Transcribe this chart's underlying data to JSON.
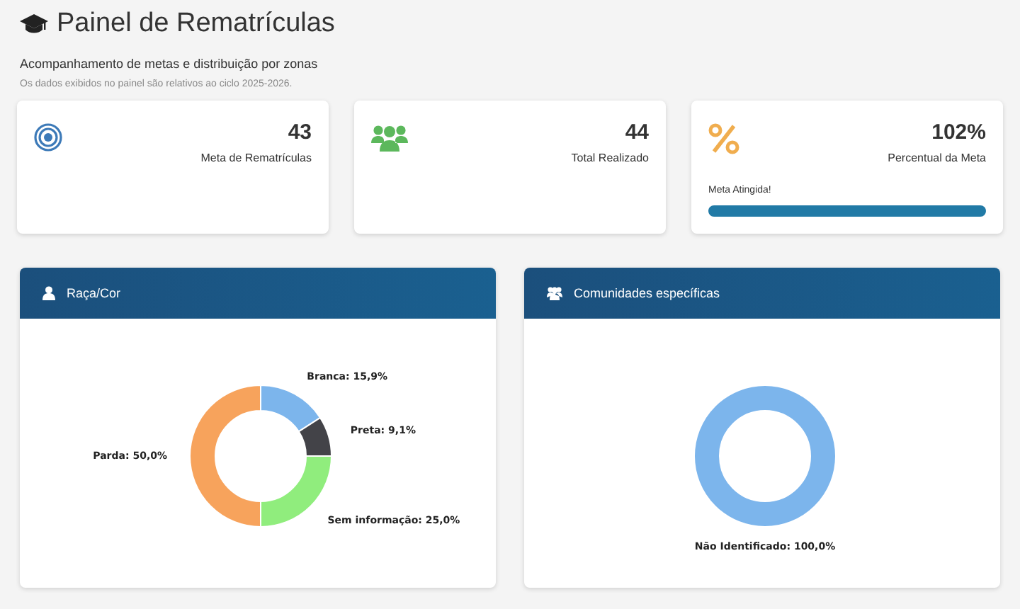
{
  "chart_data": [
    {
      "type": "other",
      "title": "Painel de Rematrículas",
      "subtitle": "Acompanhamento de metas e distribuição por zonas",
      "annotations": [
        "Os dados exibidos no painel são relativos ao ciclo 2025-2026.",
        "43",
        "Meta de Rematrículas",
        "44",
        "Total Realizado",
        "102%",
        "Percentual da Meta",
        "Meta Atingida!"
      ]
    },
    {
      "type": "donut",
      "title": "Raça/Cor",
      "categories": [
        "Branca",
        "Preta",
        "Sem informação",
        "Parda"
      ],
      "values": [
        15.9,
        9.1,
        25.0,
        50.0
      ],
      "colors": [
        "#7cb5ec",
        "#434348",
        "#90ed7d",
        "#f7a35c"
      ],
      "value_labels": [
        "15,9%",
        "9,1%",
        "25,0%",
        "50,0%"
      ]
    },
    {
      "type": "donut",
      "title": "Comunidades específicas",
      "categories": [
        "Não Identificado"
      ],
      "values": [
        100.0
      ],
      "colors": [
        "#7cb5ec"
      ],
      "value_labels": [
        "100,0%"
      ]
    }
  ]
}
